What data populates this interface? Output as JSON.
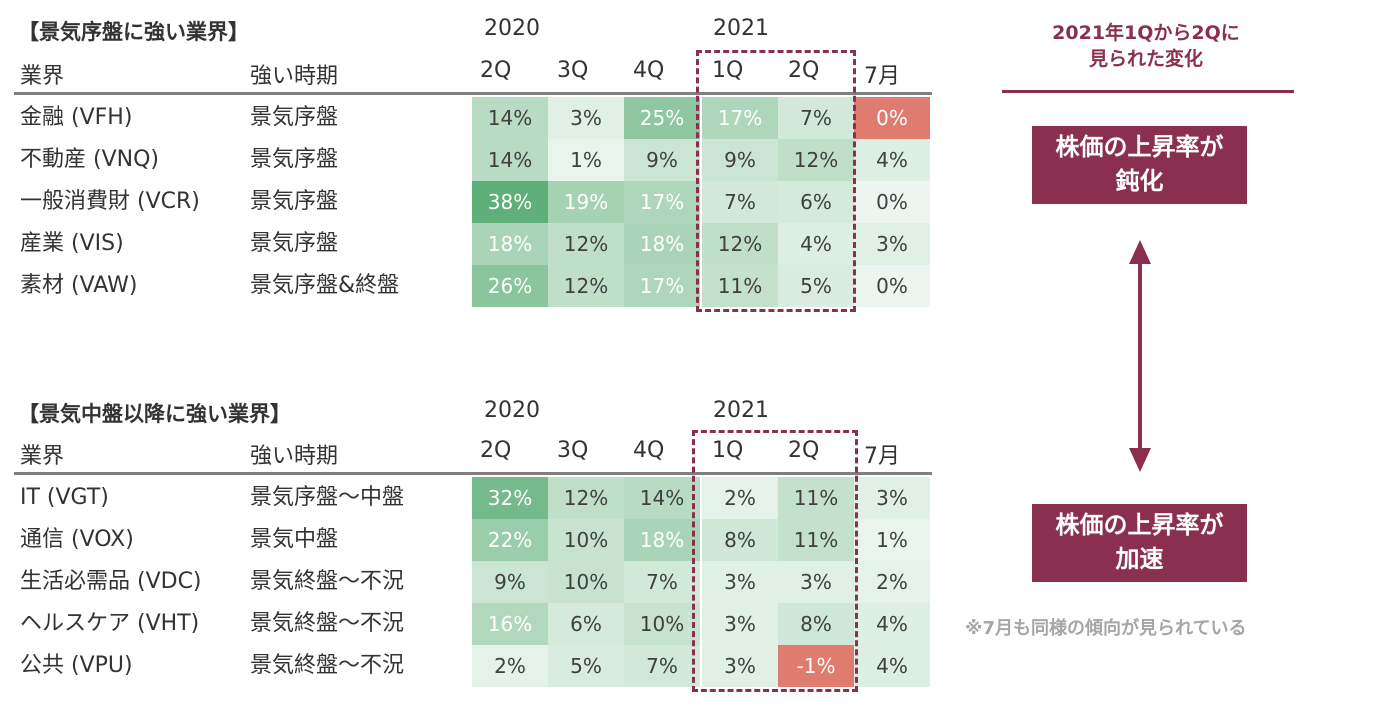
{
  "colors": {
    "accent": "#8b2f50",
    "negative": "#e07b6f",
    "green_scale": [
      "#ffffff",
      "#5faf78"
    ]
  },
  "chart_data": [
    {
      "type": "table",
      "title": "【景気序盤に強い業界】",
      "year_labels": [
        "2020",
        "2021"
      ],
      "columns": [
        "業界",
        "強い時期",
        "2Q",
        "3Q",
        "4Q",
        "1Q",
        "2Q",
        "7月"
      ],
      "rows": [
        {
          "sector": "金融 (VFH)",
          "period": "景気序盤",
          "values": [
            14,
            3,
            25,
            17,
            7,
            0
          ],
          "labels": [
            "14%",
            "3%",
            "25%",
            "17%",
            "7%",
            "0%"
          ]
        },
        {
          "sector": "不動産 (VNQ)",
          "period": "景気序盤",
          "values": [
            14,
            1,
            9,
            9,
            12,
            4
          ],
          "labels": [
            "14%",
            "1%",
            "9%",
            "9%",
            "12%",
            "4%"
          ]
        },
        {
          "sector": "一般消費財 (VCR)",
          "period": "景気序盤",
          "values": [
            38,
            19,
            17,
            7,
            6,
            0
          ],
          "labels": [
            "38%",
            "19%",
            "17%",
            "7%",
            "6%",
            "0%"
          ]
        },
        {
          "sector": "産業 (VIS)",
          "period": "景気序盤",
          "values": [
            18,
            12,
            18,
            12,
            4,
            3
          ],
          "labels": [
            "18%",
            "12%",
            "18%",
            "12%",
            "4%",
            "3%"
          ]
        },
        {
          "sector": "素材 (VAW)",
          "period": "景気序盤&終盤",
          "values": [
            26,
            12,
            17,
            11,
            5,
            0
          ],
          "labels": [
            "26%",
            "12%",
            "17%",
            "11%",
            "5%",
            "0%"
          ]
        }
      ],
      "highlight_columns": [
        "1Q",
        "2Q"
      ],
      "red_cells": [
        [
          0,
          5
        ]
      ]
    },
    {
      "type": "table",
      "title": "【景気中盤以降に強い業界】",
      "year_labels": [
        "2020",
        "2021"
      ],
      "columns": [
        "業界",
        "強い時期",
        "2Q",
        "3Q",
        "4Q",
        "1Q",
        "2Q",
        "7月"
      ],
      "rows": [
        {
          "sector": "IT (VGT)",
          "period": "景気序盤〜中盤",
          "values": [
            32,
            12,
            14,
            2,
            11,
            3
          ],
          "labels": [
            "32%",
            "12%",
            "14%",
            "2%",
            "11%",
            "3%"
          ]
        },
        {
          "sector": "通信 (VOX)",
          "period": "景気中盤",
          "values": [
            22,
            10,
            18,
            8,
            11,
            1
          ],
          "labels": [
            "22%",
            "10%",
            "18%",
            "8%",
            "11%",
            "1%"
          ]
        },
        {
          "sector": "生活必需品 (VDC)",
          "period": "景気終盤〜不況",
          "values": [
            9,
            10,
            7,
            3,
            3,
            2
          ],
          "labels": [
            "9%",
            "10%",
            "7%",
            "3%",
            "3%",
            "2%"
          ]
        },
        {
          "sector": "ヘルスケア (VHT)",
          "period": "景気終盤〜不況",
          "values": [
            16,
            6,
            10,
            3,
            8,
            4
          ],
          "labels": [
            "16%",
            "6%",
            "10%",
            "3%",
            "8%",
            "4%"
          ]
        },
        {
          "sector": "公共 (VPU)",
          "period": "景気終盤〜不況",
          "values": [
            2,
            5,
            7,
            3,
            -1,
            4
          ],
          "labels": [
            "2%",
            "5%",
            "7%",
            "3%",
            "-1%",
            "4%"
          ]
        }
      ],
      "highlight_columns": [
        "1Q",
        "2Q"
      ],
      "red_cells": [
        [
          4,
          4
        ]
      ]
    }
  ],
  "annotations": {
    "right_title_line1": "2021年1Qから2Qに",
    "right_title_line2": "見られた変化",
    "callout_top_line1": "株価の上昇率が",
    "callout_top_line2": "鈍化",
    "callout_bottom_line1": "株価の上昇率が",
    "callout_bottom_line2": "加速",
    "note": "※7月も同様の傾向が見られている"
  }
}
